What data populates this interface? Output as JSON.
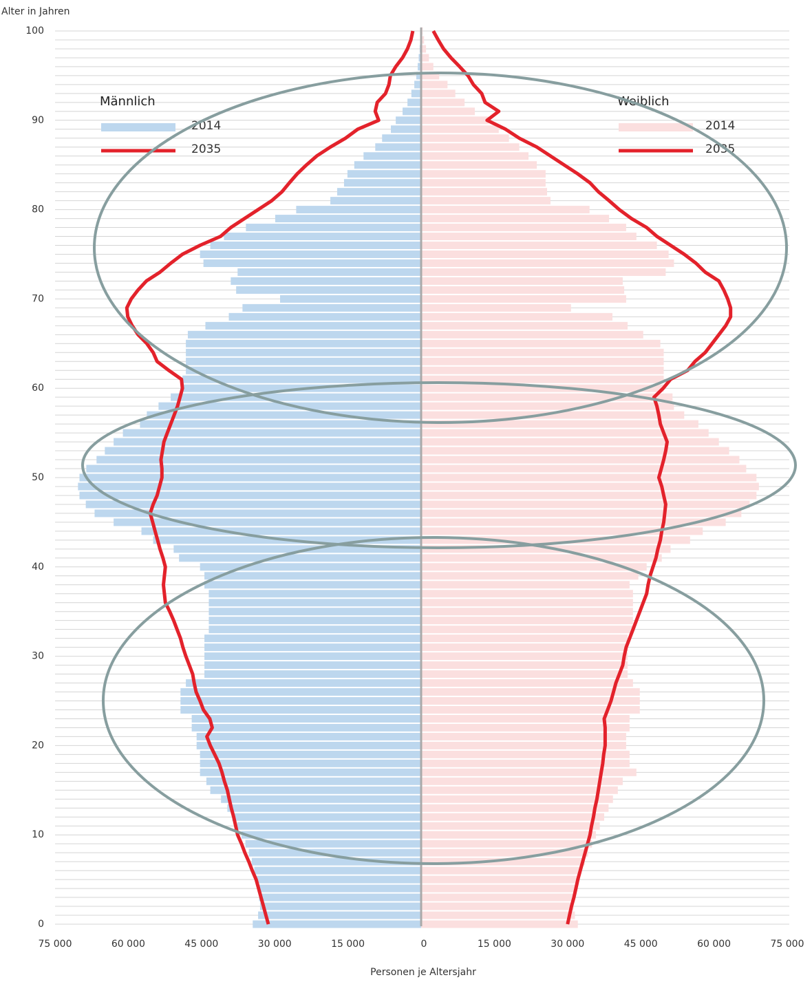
{
  "chart_data": {
    "type": "pyramid",
    "y_label": "Alter in Jahren",
    "x_label": "Personen je Altersjahr",
    "legend_groups": [
      {
        "title": "Männlich",
        "side": "left"
      },
      {
        "title": "Weiblich",
        "side": "right"
      }
    ],
    "grid": true,
    "ylim": [
      0,
      100
    ],
    "yticks": [
      0,
      10,
      20,
      30,
      40,
      50,
      60,
      70,
      80,
      90,
      100
    ],
    "xlim": [
      0,
      75000
    ],
    "xticks": [
      0,
      {
        "value": 15000,
        "label": "15 000"
      },
      {
        "value": 30000,
        "label": "30 000"
      },
      {
        "value": 45000,
        "label": "45 000"
      },
      {
        "value": 60000,
        "label": "60 000"
      },
      {
        "value": 75000,
        "label": "75 000"
      }
    ],
    "y": [
      0,
      1,
      2,
      3,
      4,
      5,
      6,
      7,
      8,
      9,
      10,
      11,
      12,
      13,
      14,
      15,
      16,
      17,
      18,
      19,
      20,
      21,
      22,
      23,
      24,
      25,
      26,
      27,
      28,
      29,
      30,
      31,
      32,
      33,
      34,
      35,
      36,
      37,
      38,
      39,
      40,
      41,
      42,
      43,
      44,
      45,
      46,
      47,
      48,
      49,
      50,
      51,
      52,
      53,
      54,
      55,
      56,
      57,
      58,
      59,
      60,
      61,
      62,
      63,
      64,
      65,
      66,
      67,
      68,
      69,
      70,
      71,
      72,
      73,
      74,
      75,
      76,
      77,
      78,
      79,
      80,
      81,
      82,
      83,
      84,
      85,
      86,
      87,
      88,
      89,
      90,
      91,
      92,
      93,
      94,
      95,
      96,
      97,
      98,
      99,
      100
    ],
    "series": [
      {
        "name": "2014",
        "side": "left",
        "style": "bar",
        "color": "#bdd7ee",
        "values": [
          34500,
          33400,
          33000,
          33200,
          33500,
          33800,
          34200,
          34700,
          35300,
          36000,
          36800,
          37700,
          38700,
          39700,
          41000,
          43200,
          44000,
          45300,
          45300,
          45300,
          46000,
          46000,
          47000,
          47000,
          49300,
          49300,
          49300,
          48200,
          44400,
          44400,
          44400,
          44400,
          44400,
          43500,
          43500,
          43500,
          43500,
          43500,
          44400,
          44400,
          45300,
          49600,
          50700,
          54900,
          57300,
          63000,
          66900,
          68700,
          70000,
          70300,
          70000,
          68600,
          66500,
          64800,
          63000,
          61100,
          57600,
          56200,
          53800,
          51300,
          49300,
          48900,
          48200,
          48200,
          48200,
          48200,
          47800,
          44200,
          39400,
          36600,
          28900,
          37900,
          39000,
          37600,
          44600,
          45300,
          43200,
          40400,
          35900,
          29900,
          25600,
          18600,
          17200,
          15800,
          15100,
          13700,
          11800,
          9400,
          8000,
          6200,
          5200,
          3800,
          2800,
          2000,
          1400,
          1000,
          700,
          500,
          300,
          200,
          100
        ]
      },
      {
        "name": "2035",
        "side": "left",
        "style": "line",
        "color": "#e3222b",
        "values": [
          31300,
          31800,
          32300,
          32800,
          33300,
          33800,
          34600,
          35300,
          36100,
          36800,
          37600,
          38000,
          38400,
          38900,
          39300,
          39700,
          40300,
          40800,
          41400,
          42300,
          43200,
          43900,
          42800,
          43300,
          44600,
          45300,
          46100,
          46500,
          46800,
          47500,
          48200,
          48800,
          49300,
          50000,
          50700,
          51500,
          52400,
          52600,
          52800,
          52600,
          52400,
          52900,
          53500,
          54000,
          54500,
          55000,
          55500,
          54900,
          54100,
          53600,
          53100,
          53100,
          53300,
          53000,
          52700,
          52000,
          51300,
          50600,
          49900,
          49400,
          48900,
          49100,
          51700,
          54100,
          54900,
          56200,
          58000,
          59200,
          60100,
          60300,
          59400,
          58000,
          56300,
          53500,
          51300,
          48900,
          45300,
          41100,
          39000,
          36200,
          33400,
          30600,
          28500,
          27000,
          25400,
          23500,
          21400,
          18600,
          15500,
          13000,
          8700,
          9400,
          9000,
          7300,
          6600,
          6300,
          5200,
          3800,
          2800,
          2100,
          1700
        ]
      },
      {
        "name": "2014",
        "side": "right",
        "style": "bar",
        "color": "#fbdfdf",
        "values": [
          32100,
          31500,
          31200,
          31500,
          31800,
          32200,
          32800,
          33500,
          34200,
          35000,
          35800,
          36600,
          37500,
          38400,
          39300,
          40300,
          41300,
          44100,
          42700,
          42700,
          42000,
          42000,
          42700,
          42700,
          44800,
          44800,
          44800,
          43400,
          42300,
          42300,
          42300,
          42300,
          42300,
          43400,
          43400,
          43400,
          43400,
          43400,
          42700,
          44500,
          46200,
          49300,
          51100,
          55100,
          57700,
          62400,
          65600,
          67300,
          68700,
          69200,
          68700,
          66600,
          65200,
          63100,
          61000,
          58900,
          56800,
          53900,
          51800,
          51500,
          49700,
          49700,
          49700,
          49700,
          49700,
          49000,
          45500,
          42300,
          39200,
          30700,
          42000,
          41600,
          41300,
          50100,
          51800,
          50700,
          48300,
          44100,
          42000,
          38500,
          34500,
          26500,
          25800,
          25500,
          25500,
          23700,
          22000,
          20100,
          18000,
          15900,
          13800,
          11000,
          8900,
          7000,
          5400,
          3700,
          2500,
          1600,
          1000,
          600,
          300
        ]
      },
      {
        "name": "2035",
        "side": "right",
        "style": "line",
        "color": "#e3222b",
        "values": [
          30000,
          30400,
          30800,
          31300,
          31700,
          32100,
          32600,
          33100,
          33600,
          34100,
          34600,
          34900,
          35300,
          35600,
          36000,
          36300,
          36600,
          36900,
          37200,
          37400,
          37700,
          37700,
          37700,
          37500,
          38200,
          38900,
          39400,
          39900,
          40600,
          41300,
          41600,
          42000,
          42700,
          43400,
          44100,
          44800,
          45500,
          46200,
          46500,
          46900,
          47500,
          48100,
          48500,
          49000,
          49300,
          49700,
          49900,
          50100,
          49700,
          49300,
          48700,
          49200,
          49700,
          50100,
          50400,
          49700,
          49000,
          48700,
          48300,
          47700,
          49600,
          51100,
          54600,
          56100,
          58200,
          59600,
          61000,
          62400,
          63400,
          63400,
          62800,
          62000,
          61000,
          58200,
          56300,
          53900,
          51100,
          48300,
          46200,
          43100,
          40600,
          38500,
          36300,
          34600,
          32100,
          29300,
          26500,
          23700,
          20100,
          17300,
          13500,
          15900,
          13100,
          12400,
          10700,
          9600,
          7900,
          6100,
          4600,
          3500,
          2500
        ]
      }
    ]
  }
}
